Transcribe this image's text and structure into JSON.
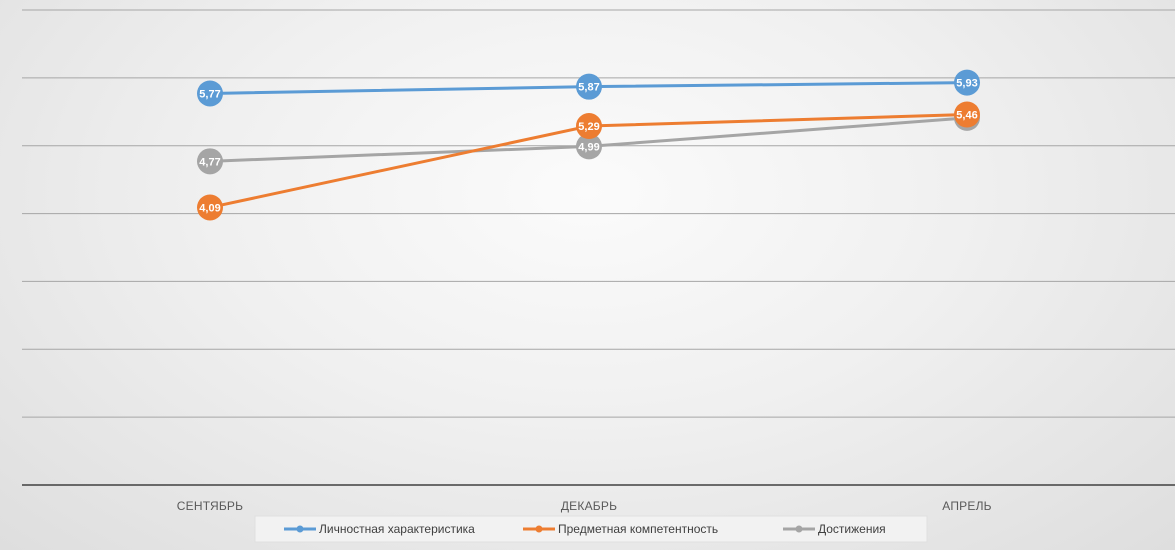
{
  "chart_data": {
    "type": "line",
    "title": "",
    "xlabel": "",
    "ylabel": "",
    "categories": [
      "СЕНТЯБРЬ",
      "ДЕКАБРЬ",
      "АПРЕЛЬ"
    ],
    "ylim": [
      0,
      7
    ],
    "gridlines": true,
    "legend_position": "bottom",
    "series": [
      {
        "name": "Личностная характеристика",
        "values": [
          5.77,
          5.87,
          5.93
        ],
        "labels": [
          "5,77",
          "5,87",
          "5,93"
        ],
        "color": "#5b9bd5"
      },
      {
        "name": "Предметная компетентность",
        "values": [
          4.09,
          5.29,
          5.46
        ],
        "labels": [
          "4,09",
          "5,29",
          "5,46"
        ],
        "color": "#ed7d31"
      },
      {
        "name": "Достижения",
        "values": [
          4.77,
          4.99,
          5.41
        ],
        "labels": [
          "4,77",
          "4,99",
          "5,41"
        ],
        "color": "#a5a5a5"
      }
    ]
  }
}
